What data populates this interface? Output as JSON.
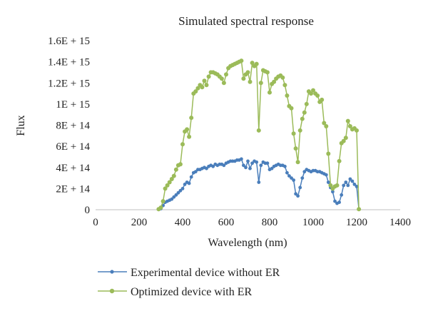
{
  "chart_data": {
    "type": "line",
    "title": "Simulated spectral response",
    "xlabel": "Wavelength (nm)",
    "ylabel": "Flux",
    "xlim": [
      0,
      1400
    ],
    "ylim": [
      0,
      1600000000000000.0
    ],
    "x_ticks": [
      0,
      200,
      400,
      600,
      800,
      1000,
      1200,
      1400
    ],
    "x_tick_labels": [
      "0",
      "200",
      "400",
      "600",
      "800",
      "1000",
      "1200",
      "1400"
    ],
    "y_ticks": [
      0,
      200000000000000.0,
      400000000000000.0,
      600000000000000.0,
      800000000000000.0,
      1000000000000000.0,
      1200000000000000.0,
      1400000000000000.0,
      1600000000000000.0
    ],
    "y_tick_labels": [
      "0",
      "2E + 14",
      "4E + 14",
      "6E + 14",
      "8E + 14",
      "1E + 15",
      "1.2E + 15",
      "1.4E + 15",
      "1.6E + 15"
    ],
    "grid": false,
    "legend_position": "bottom",
    "series": [
      {
        "name": "Experimental device without ER",
        "color": "#4a7ebb",
        "marker": "circle",
        "x": [
          290,
          300,
          310,
          320,
          330,
          340,
          350,
          360,
          370,
          380,
          390,
          400,
          410,
          420,
          430,
          440,
          450,
          460,
          470,
          480,
          490,
          500,
          510,
          520,
          530,
          540,
          550,
          560,
          570,
          580,
          590,
          600,
          610,
          620,
          630,
          640,
          650,
          660,
          670,
          680,
          690,
          700,
          710,
          720,
          730,
          740,
          750,
          760,
          770,
          780,
          790,
          800,
          810,
          820,
          830,
          840,
          850,
          860,
          870,
          880,
          890,
          900,
          910,
          920,
          930,
          940,
          950,
          960,
          970,
          980,
          990,
          1000,
          1010,
          1020,
          1030,
          1040,
          1050,
          1060,
          1070,
          1080,
          1090,
          1100,
          1110,
          1120,
          1130,
          1140,
          1150,
          1160,
          1170,
          1180,
          1190,
          1200,
          1210
        ],
        "y": [
          2000000000000.0,
          10000000000000.0,
          40000000000000.0,
          70000000000000.0,
          80000000000000.0,
          90000000000000.0,
          100000000000000.0,
          120000000000000.0,
          140000000000000.0,
          160000000000000.0,
          180000000000000.0,
          200000000000000.0,
          240000000000000.0,
          260000000000000.0,
          250000000000000.0,
          310000000000000.0,
          350000000000000.0,
          360000000000000.0,
          380000000000000.0,
          380000000000000.0,
          390000000000000.0,
          400000000000000.0,
          390000000000000.0,
          410000000000000.0,
          420000000000000.0,
          410000000000000.0,
          430000000000000.0,
          420000000000000.0,
          430000000000000.0,
          430000000000000.0,
          420000000000000.0,
          440000000000000.0,
          450000000000000.0,
          460000000000000.0,
          460000000000000.0,
          460000000000000.0,
          470000000000000.0,
          470000000000000.0,
          480000000000000.0,
          420000000000000.0,
          400000000000000.0,
          460000000000000.0,
          390000000000000.0,
          440000000000000.0,
          460000000000000.0,
          450000000000000.0,
          260000000000000.0,
          420000000000000.0,
          450000000000000.0,
          440000000000000.0,
          440000000000000.0,
          380000000000000.0,
          390000000000000.0,
          410000000000000.0,
          420000000000000.0,
          430000000000000.0,
          420000000000000.0,
          420000000000000.0,
          410000000000000.0,
          350000000000000.0,
          320000000000000.0,
          300000000000000.0,
          280000000000000.0,
          150000000000000.0,
          130000000000000.0,
          210000000000000.0,
          300000000000000.0,
          360000000000000.0,
          380000000000000.0,
          370000000000000.0,
          360000000000000.0,
          370000000000000.0,
          370000000000000.0,
          360000000000000.0,
          360000000000000.0,
          350000000000000.0,
          340000000000000.0,
          330000000000000.0,
          260000000000000.0,
          210000000000000.0,
          170000000000000.0,
          80000000000000.0,
          60000000000000.0,
          70000000000000.0,
          140000000000000.0,
          230000000000000.0,
          260000000000000.0,
          230000000000000.0,
          290000000000000.0,
          270000000000000.0,
          240000000000000.0,
          220000000000000.0,
          5000000000000.0
        ]
      },
      {
        "name": "Optimized device with ER",
        "color": "#9bbb59",
        "marker": "circle",
        "x": [
          290,
          300,
          310,
          320,
          330,
          340,
          350,
          360,
          370,
          380,
          390,
          400,
          410,
          420,
          430,
          440,
          450,
          460,
          470,
          480,
          490,
          500,
          510,
          520,
          530,
          540,
          550,
          560,
          570,
          580,
          590,
          600,
          610,
          620,
          630,
          640,
          650,
          660,
          670,
          680,
          690,
          700,
          710,
          720,
          730,
          740,
          750,
          760,
          770,
          780,
          790,
          800,
          810,
          820,
          830,
          840,
          850,
          860,
          870,
          880,
          890,
          900,
          910,
          920,
          930,
          940,
          950,
          960,
          970,
          980,
          990,
          1000,
          1010,
          1020,
          1030,
          1040,
          1050,
          1060,
          1070,
          1080,
          1090,
          1100,
          1110,
          1120,
          1130,
          1140,
          1150,
          1160,
          1170,
          1180,
          1190,
          1200,
          1210
        ],
        "y": [
          5000000000000.0,
          20000000000000.0,
          80000000000000.0,
          200000000000000.0,
          230000000000000.0,
          260000000000000.0,
          290000000000000.0,
          320000000000000.0,
          380000000000000.0,
          420000000000000.0,
          430000000000000.0,
          620000000000000.0,
          740000000000000.0,
          760000000000000.0,
          690000000000000.0,
          870000000000000.0,
          1100000000000000.0,
          1120000000000000.0,
          1150000000000000.0,
          1180000000000000.0,
          1160000000000000.0,
          1220000000000000.0,
          1180000000000000.0,
          1260000000000000.0,
          1300000000000000.0,
          1300000000000000.0,
          1290000000000000.0,
          1280000000000000.0,
          1260000000000000.0,
          1240000000000000.0,
          1200000000000000.0,
          1280000000000000.0,
          1340000000000000.0,
          1360000000000000.0,
          1370000000000000.0,
          1380000000000000.0,
          1390000000000000.0,
          1400000000000000.0,
          1410000000000000.0,
          1240000000000000.0,
          1280000000000000.0,
          1300000000000000.0,
          1210000000000000.0,
          1390000000000000.0,
          1360000000000000.0,
          1380000000000000.0,
          750000000000000.0,
          1200000000000000.0,
          1320000000000000.0,
          1310000000000000.0,
          1300000000000000.0,
          1110000000000000.0,
          1190000000000000.0,
          1210000000000000.0,
          1240000000000000.0,
          1260000000000000.0,
          1270000000000000.0,
          1250000000000000.0,
          1180000000000000.0,
          1080000000000000.0,
          980000000000000.0,
          960000000000000.0,
          720000000000000.0,
          580000000000000.0,
          450000000000000.0,
          750000000000000.0,
          860000000000000.0,
          920000000000000.0,
          1000000000000000.0,
          1120000000000000.0,
          1100000000000000.0,
          1130000000000000.0,
          1100000000000000.0,
          1080000000000000.0,
          1020000000000000.0,
          1040000000000000.0,
          820000000000000.0,
          790000000000000.0,
          530000000000000.0,
          230000000000000.0,
          200000000000000.0,
          220000000000000.0,
          230000000000000.0,
          460000000000000.0,
          630000000000000.0,
          650000000000000.0,
          680000000000000.0,
          840000000000000.0,
          790000000000000.0,
          760000000000000.0,
          770000000000000.0,
          750000000000000.0,
          5000000000000.0
        ]
      }
    ]
  }
}
